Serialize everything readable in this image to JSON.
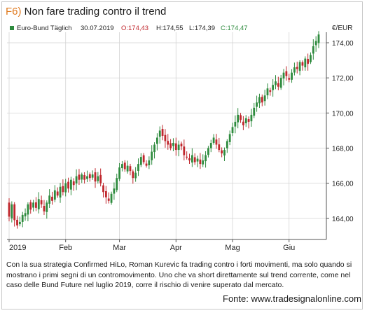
{
  "header": {
    "tag": "F6)",
    "title": "Non fare trading contro il trend"
  },
  "legend": {
    "instrument": "Euro-Bund Täglich",
    "date": "30.07.2019",
    "open": "O:174,43",
    "high": "H:174,55",
    "low": "L:174,39",
    "close": "C:174,47",
    "currency": "€/EUR"
  },
  "caption": "Con la sua strategia Confirmed HiLo, Roman Kurevic fa trading contro i forti movimenti, ma solo quando si mostrano i primi segni di un contromovimento. Uno che va short direttamente sul trend corrente, come nel caso delle Bund Future nel luglio 2019, corre il rischio di venire superato dal mercato.",
  "source": "Fonte: www.tradesignalonline.com",
  "colors": {
    "up": "#2e8b3e",
    "down": "#c0272d",
    "tag": "#e07a1f",
    "grid": "#d4d4d4"
  },
  "chart_data": {
    "type": "candlestick",
    "ylim": [
      162.8,
      174.6
    ],
    "y_ticks": [
      164,
      166,
      168,
      170,
      172,
      174
    ],
    "y_tick_labels": [
      "164,00",
      "166,00",
      "168,00",
      "170,00",
      "172,00",
      "174,00"
    ],
    "x_ticks": [
      {
        "label": "2019",
        "index": 0
      },
      {
        "label": "Feb",
        "index": 21
      },
      {
        "label": "Mar",
        "index": 41
      },
      {
        "label": "Apr",
        "index": 62
      },
      {
        "label": "Mag",
        "index": 83
      },
      {
        "label": "Giu",
        "index": 104
      }
    ],
    "closes": [
      164.1,
      164.8,
      163.9,
      163.6,
      163.8,
      164.2,
      164.3,
      164.8,
      164.5,
      164.9,
      164.6,
      165.1,
      164.8,
      164.4,
      164.9,
      165.3,
      165.0,
      165.6,
      165.3,
      165.8,
      165.5,
      166.0,
      165.7,
      166.2,
      165.9,
      166.4,
      166.2,
      166.5,
      166.2,
      166.4,
      166.3,
      166.5,
      166.1,
      166.4,
      166.0,
      165.5,
      165.2,
      165.0,
      165.4,
      165.7,
      166.3,
      166.9,
      167.1,
      166.8,
      167.0,
      166.7,
      166.3,
      166.6,
      167.1,
      167.5,
      167.2,
      167.0,
      167.3,
      167.8,
      168.2,
      168.6,
      169.0,
      168.7,
      168.4,
      168.2,
      168.0,
      168.3,
      167.9,
      168.2,
      168.1,
      167.6,
      167.5,
      167.3,
      167.6,
      167.2,
      167.4,
      167.1,
      167.3,
      167.6,
      168.0,
      168.3,
      168.6,
      168.2,
      167.9,
      167.7,
      167.9,
      168.4,
      168.8,
      169.2,
      169.5,
      169.9,
      169.6,
      169.3,
      169.7,
      169.5,
      169.9,
      170.3,
      170.6,
      170.9,
      170.6,
      171.0,
      171.4,
      171.2,
      171.6,
      171.8,
      171.5,
      172.0,
      172.3,
      172.1,
      171.9,
      172.3,
      172.6,
      172.5,
      172.9,
      172.7,
      173.1,
      172.8,
      173.3,
      173.8,
      174.1,
      174.47
    ]
  }
}
